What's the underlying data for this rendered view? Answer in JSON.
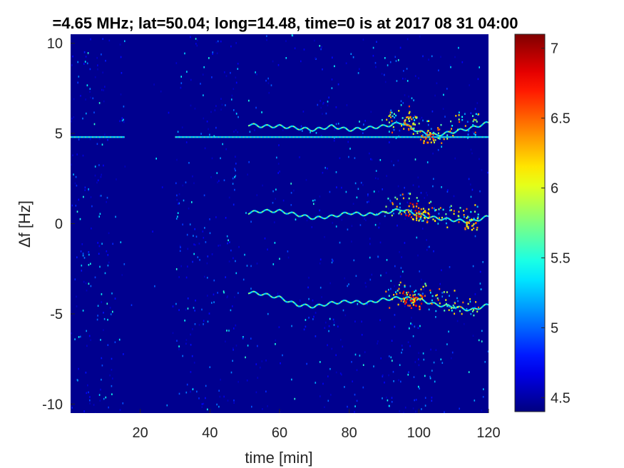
{
  "chart_data": {
    "type": "heatmap",
    "title": "=4.65 MHz;  lat=50.04; long=14.48, time=0 is at 2017 08 31 04:00",
    "xlabel": "time [min]",
    "ylabel": "Δf [Hz]",
    "xlim": [
      0,
      120
    ],
    "ylim": [
      -10.5,
      10.5
    ],
    "x_ticks": [
      20,
      40,
      60,
      80,
      100,
      120
    ],
    "y_ticks": [
      -10,
      -5,
      0,
      5,
      10
    ],
    "x_tick_labels": [
      "20",
      "40",
      "60",
      "80",
      "100",
      "120"
    ],
    "y_tick_labels": [
      "-10",
      "-5",
      "0",
      "5",
      "10"
    ],
    "colorbar": {
      "colormap": "jet",
      "range": [
        4.4,
        7.1
      ],
      "ticks": [
        4.5,
        5,
        5.5,
        6,
        6.5,
        7
      ],
      "tick_labels": [
        "4.5",
        "5",
        "5.5",
        "6",
        "6.5",
        "7"
      ]
    },
    "background_color": "#00008f",
    "features": [
      {
        "kind": "carrier-line",
        "y": 4.8,
        "x_segments": [
          [
            0,
            15.5
          ],
          [
            30,
            120
          ]
        ]
      },
      {
        "kind": "echo-trace",
        "x_start": 51,
        "x_end": 120,
        "points": [
          [
            51,
            5.5
          ],
          [
            55,
            5.4
          ],
          [
            60,
            5.4
          ],
          [
            65,
            5.3
          ],
          [
            70,
            5.2
          ],
          [
            75,
            5.4
          ],
          [
            80,
            5.2
          ],
          [
            85,
            5.3
          ],
          [
            90,
            5.4
          ],
          [
            95,
            5.6
          ],
          [
            100,
            5.1
          ],
          [
            105,
            4.9
          ],
          [
            110,
            5.1
          ],
          [
            115,
            5.3
          ],
          [
            120,
            5.6
          ]
        ]
      },
      {
        "kind": "echo-trace",
        "x_start": 51,
        "x_end": 120,
        "points": [
          [
            51,
            0.6
          ],
          [
            55,
            0.7
          ],
          [
            60,
            0.7
          ],
          [
            65,
            0.5
          ],
          [
            70,
            0.3
          ],
          [
            75,
            0.4
          ],
          [
            80,
            0.6
          ],
          [
            85,
            0.5
          ],
          [
            90,
            0.6
          ],
          [
            95,
            0.8
          ],
          [
            100,
            0.5
          ],
          [
            105,
            0.3
          ],
          [
            110,
            0.2
          ],
          [
            115,
            0.1
          ],
          [
            120,
            0.4
          ]
        ]
      },
      {
        "kind": "echo-trace",
        "x_start": 51,
        "x_end": 120,
        "points": [
          [
            51,
            -3.8
          ],
          [
            55,
            -3.9
          ],
          [
            60,
            -4.1
          ],
          [
            65,
            -4.5
          ],
          [
            70,
            -4.6
          ],
          [
            75,
            -4.4
          ],
          [
            80,
            -4.3
          ],
          [
            85,
            -4.4
          ],
          [
            90,
            -4.2
          ],
          [
            95,
            -4.1
          ],
          [
            100,
            -4.2
          ],
          [
            105,
            -4.5
          ],
          [
            110,
            -4.6
          ],
          [
            115,
            -4.8
          ],
          [
            120,
            -4.5
          ]
        ]
      }
    ],
    "hotspots": [
      {
        "x": 97,
        "y": 5.6,
        "value": 6.6
      },
      {
        "x": 102,
        "y": 4.9,
        "value": 6.8
      },
      {
        "x": 98,
        "y": 0.8,
        "value": 7.0
      },
      {
        "x": 101,
        "y": 0.5,
        "value": 6.7
      },
      {
        "x": 97,
        "y": -4.1,
        "value": 7.1
      },
      {
        "x": 99,
        "y": -4.3,
        "value": 6.9
      },
      {
        "x": 115,
        "y": 0.0,
        "value": 6.6
      }
    ],
    "noise_columns": [
      {
        "x_range": [
          0,
          12
        ],
        "intensity": 0.55
      },
      {
        "x_range": [
          12,
          15.5
        ],
        "intensity": 0.25
      },
      {
        "x_range": [
          15.5,
          30
        ],
        "intensity": 0.03
      },
      {
        "x_range": [
          30,
          46
        ],
        "intensity": 0.45
      },
      {
        "x_range": [
          46,
          48
        ],
        "intensity": 0.8
      },
      {
        "x_range": [
          48,
          70
        ],
        "intensity": 0.2
      },
      {
        "x_range": [
          70,
          90
        ],
        "intensity": 0.35
      },
      {
        "x_range": [
          90,
          105
        ],
        "intensity": 0.45
      },
      {
        "x_range": [
          105,
          120
        ],
        "intensity": 0.2
      }
    ]
  }
}
